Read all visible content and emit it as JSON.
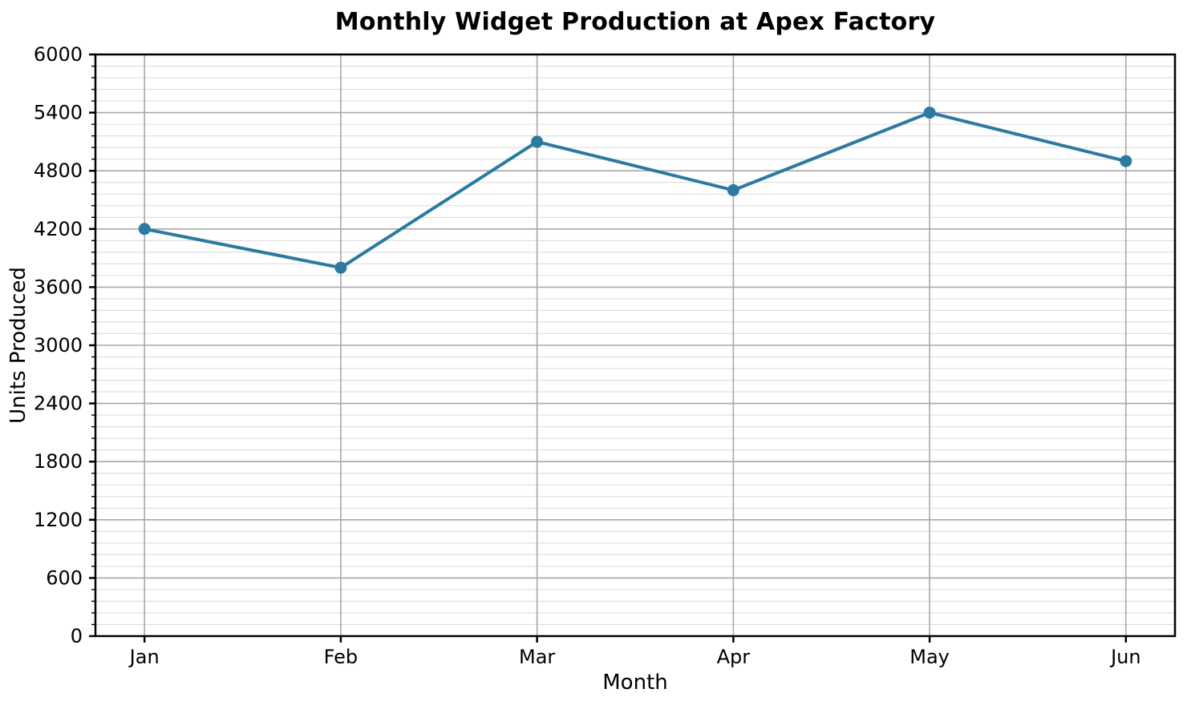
{
  "chart_data": {
    "type": "line",
    "title": "Monthly Widget Production at Apex Factory",
    "xlabel": "Month",
    "ylabel": "Units Produced",
    "categories": [
      "Jan",
      "Feb",
      "Mar",
      "Apr",
      "May",
      "Jun"
    ],
    "values": [
      4200,
      3800,
      5100,
      4600,
      5400,
      4900
    ],
    "ylim": [
      0,
      6000
    ],
    "yticks": [
      0,
      600,
      1200,
      1800,
      2400,
      3000,
      3600,
      4200,
      4800,
      5400,
      6000
    ],
    "y_minor_step": 120,
    "grid": {
      "y_major": true,
      "y_minor": true,
      "x_major": true,
      "x_minor": false
    },
    "legend_position": "none",
    "marker": "circle"
  },
  "style": {
    "line_color": "#2b7aa0",
    "marker_color": "#2b7aa0",
    "major_grid_color": "#a8a8a8",
    "minor_grid_color": "#dcdcdc",
    "spine_color": "#000000",
    "text_color": "#000000",
    "background_color": "#ffffff"
  }
}
